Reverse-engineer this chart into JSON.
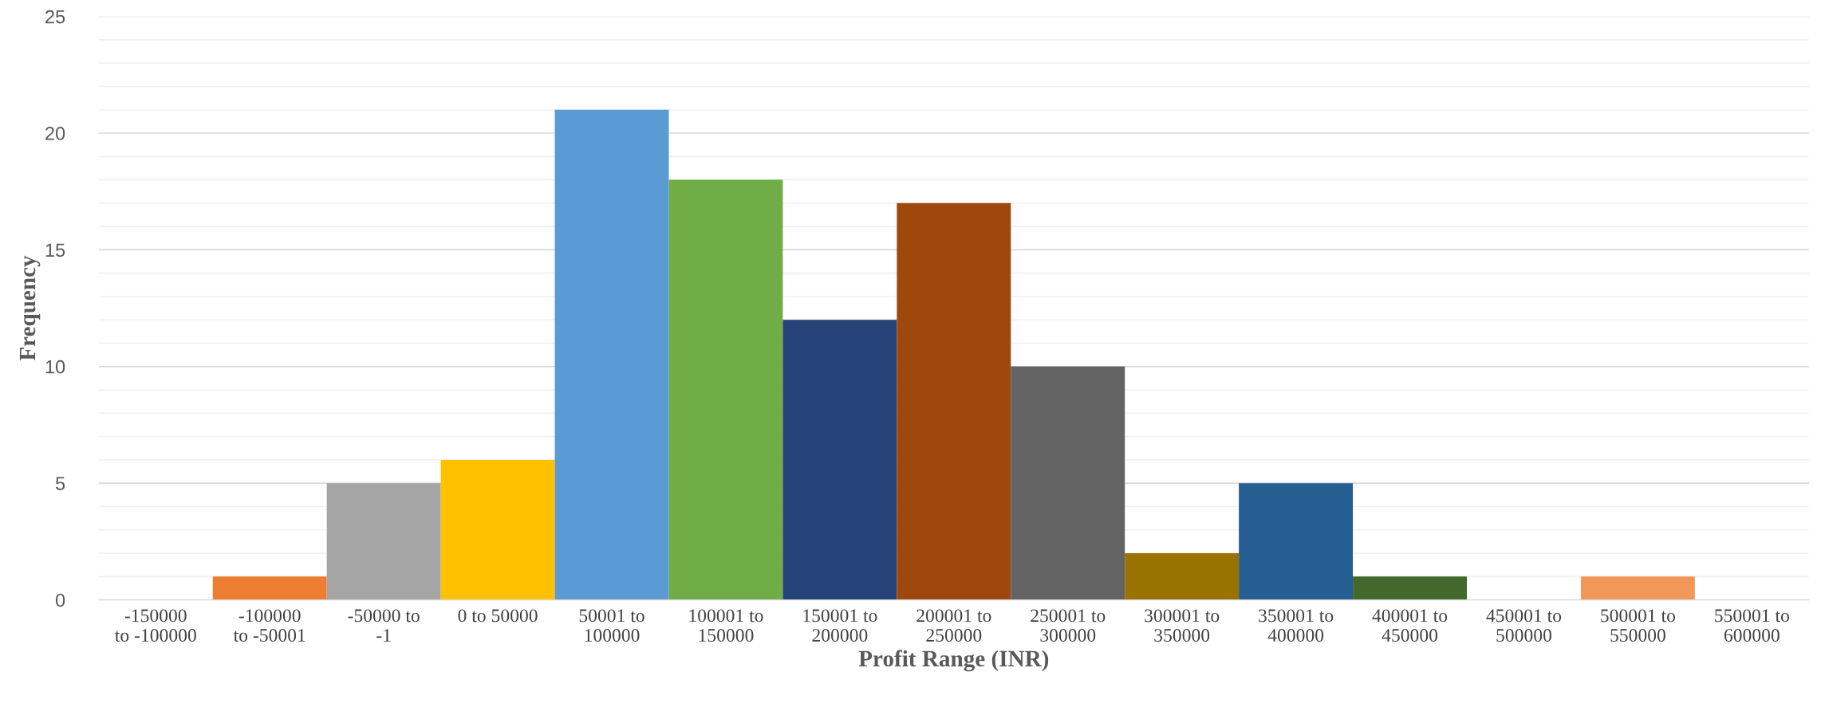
{
  "chart_data": {
    "type": "bar",
    "xlabel": "Profit Range (INR)",
    "ylabel": "Frequency",
    "categories": [
      "-150000\nto -100000",
      "-100000\nto -50001",
      "-50000 to\n-1",
      "0 to 50000",
      "50001 to\n100000",
      "100001 to\n150000",
      "150001 to\n200000",
      "200001 to\n250000",
      "250001 to\n300000",
      "300001 to\n350000",
      "350001 to\n400000",
      "400001 to\n450000",
      "450001 to\n500000",
      "500001 to\n550000",
      "550001 to\n600000"
    ],
    "values": [
      0,
      1,
      5,
      6,
      21,
      18,
      12,
      17,
      10,
      2,
      5,
      1,
      0,
      1,
      0
    ],
    "colors": [
      "#4472c4",
      "#ed7d31",
      "#a5a5a5",
      "#ffc000",
      "#5b9bd5",
      "#70ad47",
      "#264478",
      "#9e480e",
      "#636363",
      "#997300",
      "#255e91",
      "#43682b",
      "#698ed0",
      "#f1975a",
      "#b7b7b7"
    ],
    "ylim": [
      0,
      25
    ],
    "yticks": [
      0,
      5,
      10,
      15,
      20,
      25
    ],
    "grid": "y"
  }
}
